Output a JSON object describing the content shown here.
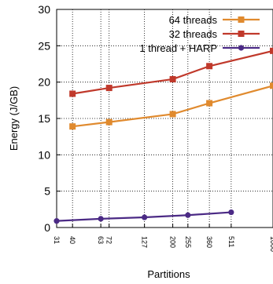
{
  "chart_data": {
    "type": "line",
    "title": "",
    "xlabel": "Partitions",
    "ylabel": "Energy (J/GB)",
    "x_ticks": [
      {
        "value": 31,
        "label": "31"
      },
      {
        "value": 40,
        "label": "40"
      },
      {
        "value": 63,
        "label": "63"
      },
      {
        "value": 72,
        "label": "72"
      },
      {
        "value": 127,
        "label": "127"
      },
      {
        "value": 200,
        "label": "200"
      },
      {
        "value": 255,
        "label": "255"
      },
      {
        "value": 360,
        "label": "360"
      },
      {
        "value": 511,
        "label": "511"
      },
      {
        "value": 1000,
        "label": "1000"
      }
    ],
    "y_ticks": [
      0,
      5,
      10,
      15,
      20,
      25,
      30
    ],
    "ylim": [
      0,
      30
    ],
    "grid": true,
    "legend_position": "top-right",
    "series": [
      {
        "name": "64 threads",
        "color": "#E08A2E",
        "marker": "square",
        "points": [
          [
            40,
            13.9
          ],
          [
            72,
            14.5
          ],
          [
            200,
            15.6
          ],
          [
            360,
            17.1
          ],
          [
            1000,
            19.5
          ]
        ]
      },
      {
        "name": "32 threads",
        "color": "#C0392B",
        "marker": "square",
        "points": [
          [
            40,
            18.4
          ],
          [
            72,
            19.2
          ],
          [
            200,
            20.4
          ],
          [
            360,
            22.2
          ],
          [
            1000,
            24.3
          ]
        ]
      },
      {
        "name": "1 thread + HARP",
        "color": "#4B2A85",
        "marker": "circle",
        "points": [
          [
            31,
            0.9
          ],
          [
            63,
            1.2
          ],
          [
            127,
            1.4
          ],
          [
            255,
            1.7
          ],
          [
            511,
            2.1
          ]
        ]
      }
    ]
  }
}
